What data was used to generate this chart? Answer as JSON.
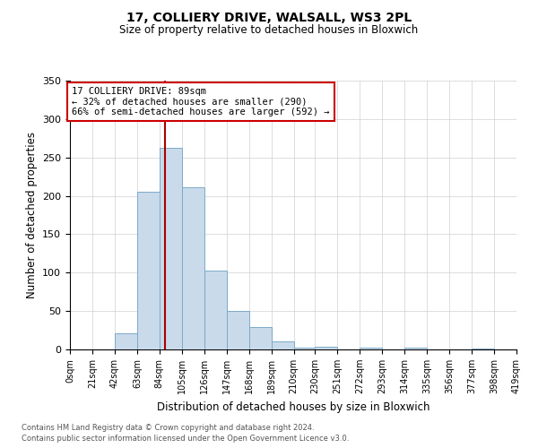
{
  "title": "17, COLLIERY DRIVE, WALSALL, WS3 2PL",
  "subtitle": "Size of property relative to detached houses in Bloxwich",
  "xlabel": "Distribution of detached houses by size in Bloxwich",
  "ylabel": "Number of detached properties",
  "bin_edges": [
    0,
    21,
    42,
    63,
    84,
    105,
    126,
    147,
    168,
    189,
    210,
    230,
    251,
    272,
    293,
    314,
    335,
    356,
    377,
    398,
    419
  ],
  "bin_counts": [
    0,
    0,
    21,
    205,
    263,
    211,
    103,
    50,
    29,
    10,
    2,
    4,
    0,
    2,
    0,
    2,
    0,
    0,
    1,
    0
  ],
  "bar_facecolor": "#c9daea",
  "bar_edgecolor": "#7baac9",
  "property_line_x": 89,
  "property_line_color": "#aa0000",
  "annotation_title": "17 COLLIERY DRIVE: 89sqm",
  "annotation_line1": "← 32% of detached houses are smaller (290)",
  "annotation_line2": "66% of semi-detached houses are larger (592) →",
  "annotation_box_color": "#cc0000",
  "ylim": [
    0,
    350
  ],
  "tick_labels": [
    "0sqm",
    "21sqm",
    "42sqm",
    "63sqm",
    "84sqm",
    "105sqm",
    "126sqm",
    "147sqm",
    "168sqm",
    "189sqm",
    "210sqm",
    "230sqm",
    "251sqm",
    "272sqm",
    "293sqm",
    "314sqm",
    "335sqm",
    "356sqm",
    "377sqm",
    "398sqm",
    "419sqm"
  ],
  "footnote1": "Contains HM Land Registry data © Crown copyright and database right 2024.",
  "footnote2": "Contains public sector information licensed under the Open Government Licence v3.0.",
  "background_color": "#ffffff",
  "grid_color": "#d0d0d0"
}
